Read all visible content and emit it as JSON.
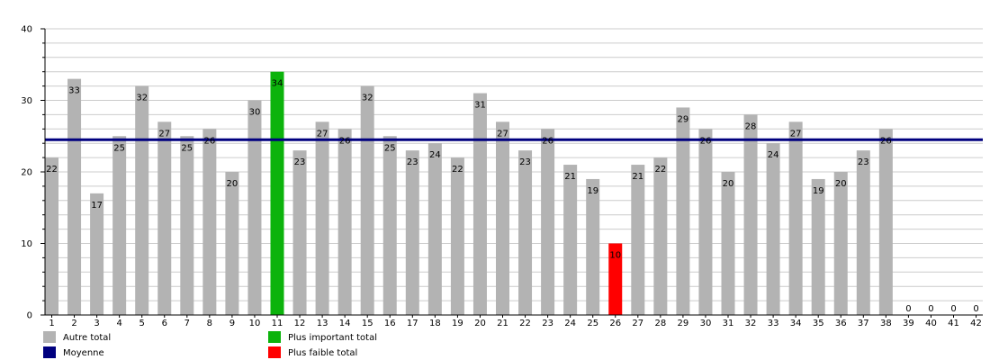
{
  "chart_data": {
    "type": "bar",
    "title": "",
    "xlabel": "",
    "ylabel": "",
    "ylim": [
      0,
      40
    ],
    "yticks": [
      0,
      10,
      20,
      30,
      40
    ],
    "grid": true,
    "legend_position": "bottom-left",
    "categories": [
      "1",
      "2",
      "3",
      "4",
      "5",
      "6",
      "7",
      "8",
      "9",
      "10",
      "11",
      "12",
      "13",
      "14",
      "15",
      "16",
      "17",
      "18",
      "19",
      "20",
      "21",
      "22",
      "23",
      "24",
      "25",
      "26",
      "27",
      "28",
      "29",
      "30",
      "31",
      "32",
      "33",
      "34",
      "35",
      "36",
      "37",
      "38",
      "39",
      "40",
      "41",
      "42"
    ],
    "values": [
      22,
      33,
      17,
      25,
      32,
      27,
      25,
      26,
      20,
      30,
      34,
      23,
      27,
      26,
      32,
      25,
      23,
      24,
      22,
      31,
      27,
      23,
      26,
      21,
      19,
      10,
      21,
      22,
      29,
      26,
      20,
      28,
      24,
      27,
      19,
      20,
      23,
      26,
      0,
      0,
      0,
      0
    ],
    "highest_index": 10,
    "lowest_index": 25,
    "average": 24.5,
    "colors": {
      "other": "#b3b3b3",
      "highest": "#0cb30c",
      "lowest": "#ff0000",
      "average": "#00007f",
      "grid": "#cccccc"
    },
    "legend": [
      {
        "key": "other",
        "label": "Autre total"
      },
      {
        "key": "highest",
        "label": "Plus important total"
      },
      {
        "key": "average",
        "label": "Moyenne"
      },
      {
        "key": "lowest",
        "label": "Plus faible total"
      }
    ]
  }
}
